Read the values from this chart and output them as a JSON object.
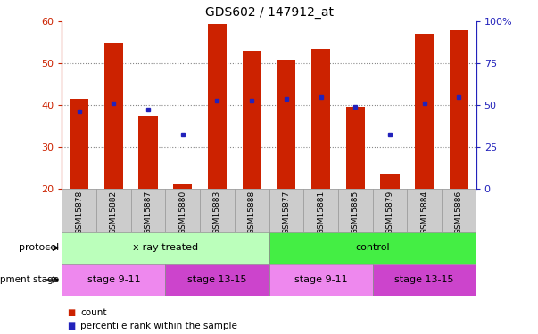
{
  "title": "GDS602 / 147912_at",
  "samples": [
    "GSM15878",
    "GSM15882",
    "GSM15887",
    "GSM15880",
    "GSM15883",
    "GSM15888",
    "GSM15877",
    "GSM15881",
    "GSM15885",
    "GSM15879",
    "GSM15884",
    "GSM15886"
  ],
  "count_values": [
    41.5,
    55.0,
    37.5,
    21.0,
    59.5,
    53.0,
    51.0,
    53.5,
    39.5,
    23.5,
    57.0,
    58.0
  ],
  "percentile_values": [
    38.5,
    40.5,
    39.0,
    33.0,
    41.0,
    41.0,
    41.5,
    42.0,
    39.5,
    33.0,
    40.5,
    42.0
  ],
  "ylim_left": [
    20,
    60
  ],
  "ylim_right": [
    0,
    100
  ],
  "yticks_left": [
    20,
    30,
    40,
    50,
    60
  ],
  "yticks_right": [
    0,
    25,
    50,
    75,
    100
  ],
  "ytick_labels_right": [
    "0",
    "25",
    "50",
    "75",
    "100%"
  ],
  "bar_color": "#cc2200",
  "dot_color": "#2222bb",
  "bar_bottom": 20,
  "protocol_groups": [
    {
      "label": "x-ray treated",
      "start": 0,
      "end": 6,
      "color": "#bbffbb"
    },
    {
      "label": "control",
      "start": 6,
      "end": 12,
      "color": "#44ee44"
    }
  ],
  "stage_groups": [
    {
      "label": "stage 9-11",
      "start": 0,
      "end": 3,
      "color": "#ee88ee"
    },
    {
      "label": "stage 13-15",
      "start": 3,
      "end": 6,
      "color": "#cc44cc"
    },
    {
      "label": "stage 9-11",
      "start": 6,
      "end": 9,
      "color": "#ee88ee"
    },
    {
      "label": "stage 13-15",
      "start": 9,
      "end": 12,
      "color": "#cc44cc"
    }
  ],
  "legend_count_color": "#cc2200",
  "legend_pct_color": "#2222bb",
  "left_tick_color": "#cc2200",
  "right_tick_color": "#2222bb",
  "title_color": "#333333",
  "grid_color": "#888888",
  "sample_bg": "#cccccc",
  "sample_border": "#999999"
}
